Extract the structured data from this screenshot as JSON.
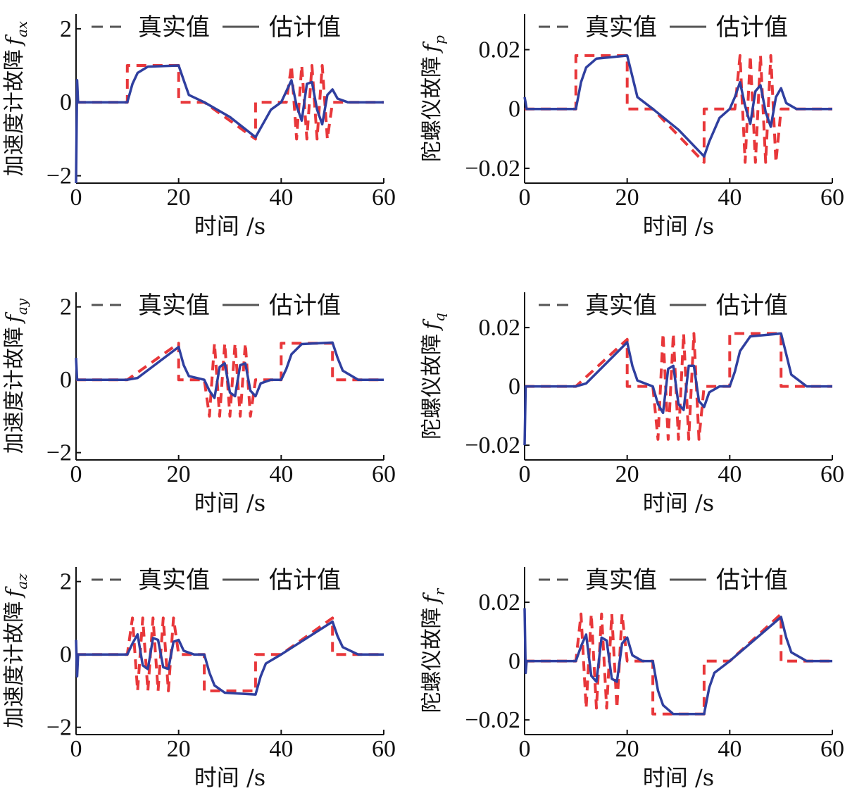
{
  "colors": {
    "true_value": "#e8373a",
    "estimate": "#2f3f9f",
    "legend_line": "#555555"
  },
  "legend": {
    "true_label": "真实值",
    "est_label": "估计值"
  },
  "chart_data": [
    {
      "type": "line",
      "ylabel": "加速度计故障",
      "ysym_main": "f",
      "ysym_sub": "ax",
      "xlabel": "时间 /s",
      "xlim": [
        0,
        60
      ],
      "ylim": [
        -2.2,
        2.4
      ],
      "xticks": [
        "0",
        "20",
        "40",
        "60"
      ],
      "xtick_values": [
        0,
        20,
        40,
        60
      ],
      "yticks": [
        "-2",
        "0",
        "2"
      ],
      "ytick_values": [
        -2,
        0,
        2
      ],
      "grid": false,
      "legend_position": "top",
      "series": [
        {
          "role": "true",
          "x": [
            0,
            10,
            10,
            20,
            20,
            25,
            35,
            35,
            40,
            41,
            42,
            43,
            44,
            45,
            46,
            47,
            48,
            49,
            50,
            60
          ],
          "y": [
            0,
            0,
            1,
            1,
            0,
            0,
            -1,
            0,
            0,
            0,
            1,
            -1,
            1,
            -1,
            1,
            -1,
            1,
            -1,
            0,
            0
          ]
        },
        {
          "role": "estimate",
          "x": [
            0,
            0.2,
            0.4,
            10,
            11,
            12,
            14,
            20,
            21,
            22,
            25,
            30,
            35,
            36,
            38,
            40,
            41,
            42,
            43,
            44,
            45,
            46,
            47,
            48,
            49,
            50,
            51,
            53,
            60
          ],
          "y": [
            -2.2,
            0.6,
            0,
            0,
            0.5,
            0.8,
            0.97,
            1,
            0.6,
            0.2,
            0,
            -0.4,
            -0.95,
            -0.7,
            -0.2,
            0,
            0.3,
            0.6,
            -0.1,
            -0.5,
            0.5,
            0.55,
            -0.2,
            -0.6,
            0.2,
            0.35,
            0.1,
            0,
            0
          ]
        }
      ]
    },
    {
      "type": "line",
      "ylabel": "陀螺仪故障",
      "ysym_main": "f",
      "ysym_sub": "p",
      "xlabel": "时间 /s",
      "xlim": [
        0,
        60
      ],
      "ylim": [
        -0.025,
        0.032
      ],
      "xticks": [
        "0",
        "20",
        "40",
        "60"
      ],
      "xtick_values": [
        0,
        20,
        40,
        60
      ],
      "yticks": [
        "0.02",
        "0",
        "-0.02"
      ],
      "ytick_values": [
        0.02,
        0,
        -0.02
      ],
      "grid": false,
      "legend_position": "top",
      "series": [
        {
          "role": "true",
          "x": [
            0,
            10,
            10,
            20,
            20,
            25,
            35,
            35,
            40,
            41,
            42,
            43,
            44,
            45,
            46,
            47,
            48,
            49,
            50,
            60
          ],
          "y": [
            0,
            0,
            0.018,
            0.018,
            0,
            0,
            -0.018,
            0,
            0,
            0,
            0.018,
            -0.018,
            0.018,
            -0.018,
            0.018,
            -0.018,
            0.018,
            -0.018,
            0,
            0
          ]
        },
        {
          "role": "estimate",
          "x": [
            0,
            0.2,
            0.4,
            10,
            11,
            12,
            14,
            20,
            21,
            22,
            25,
            30,
            35,
            36,
            38,
            40,
            41,
            42,
            43,
            44,
            45,
            46,
            47,
            48,
            49,
            50,
            51,
            53,
            60
          ],
          "y": [
            0.004,
            0.002,
            0,
            0,
            0.009,
            0.014,
            0.017,
            0.018,
            0.011,
            0.004,
            0,
            -0.007,
            -0.016,
            -0.011,
            -0.003,
            0,
            0.004,
            0.009,
            0.001,
            -0.005,
            0.006,
            0.008,
            -0.001,
            -0.006,
            0.004,
            0.007,
            0.002,
            0,
            0
          ]
        }
      ]
    },
    {
      "type": "line",
      "ylabel": "加速度计故障",
      "ysym_main": "f",
      "ysym_sub": "ay",
      "xlabel": "时间 /s",
      "xlim": [
        0,
        60
      ],
      "ylim": [
        -2.2,
        2.4
      ],
      "xticks": [
        "0",
        "20",
        "40",
        "60"
      ],
      "xtick_values": [
        0,
        20,
        40,
        60
      ],
      "yticks": [
        "-2",
        "0",
        "2"
      ],
      "ytick_values": [
        -2,
        0,
        2
      ],
      "grid": false,
      "legend_position": "top",
      "series": [
        {
          "role": "true",
          "x": [
            0,
            10,
            20,
            20,
            25,
            26,
            27,
            28,
            29,
            30,
            31,
            32,
            33,
            34,
            35,
            40,
            40,
            50,
            50,
            60
          ],
          "y": [
            0,
            0,
            1,
            0,
            0,
            -1,
            1,
            -1,
            1,
            -1,
            1,
            -1,
            1,
            -1,
            0,
            0,
            1,
            1,
            0,
            0
          ]
        },
        {
          "role": "estimate",
          "x": [
            0,
            0.2,
            0.4,
            10,
            12,
            20,
            21,
            22,
            25,
            26,
            27,
            28,
            29,
            30,
            31,
            32,
            33,
            34,
            35,
            36,
            38,
            40,
            41,
            42,
            44,
            50,
            51,
            52,
            55,
            60
          ],
          "y": [
            0.6,
            0,
            0,
            0,
            0.05,
            0.9,
            0.4,
            0.1,
            0,
            -0.3,
            -0.5,
            0.35,
            0.45,
            -0.35,
            -0.45,
            0.4,
            0.45,
            -0.3,
            -0.45,
            -0.1,
            0,
            0,
            0.3,
            0.7,
            0.98,
            1.02,
            0.6,
            0.25,
            0,
            0
          ]
        }
      ]
    },
    {
      "type": "line",
      "ylabel": "陀螺仪故障",
      "ysym_main": "f",
      "ysym_sub": "q",
      "xlabel": "时间 /s",
      "xlim": [
        0,
        60
      ],
      "ylim": [
        -0.025,
        0.032
      ],
      "xticks": [
        "0",
        "20",
        "40",
        "60"
      ],
      "xtick_values": [
        0,
        20,
        40,
        60
      ],
      "yticks": [
        "0.02",
        "0",
        "-0.02"
      ],
      "ytick_values": [
        0.02,
        0,
        -0.02
      ],
      "grid": false,
      "legend_position": "top",
      "series": [
        {
          "role": "true",
          "x": [
            0,
            10,
            20,
            20,
            25,
            26,
            27,
            28,
            29,
            30,
            31,
            32,
            33,
            34,
            35,
            40,
            40,
            50,
            50,
            60
          ],
          "y": [
            0,
            0,
            0.016,
            0,
            0,
            -0.018,
            0.018,
            -0.018,
            0.018,
            -0.018,
            0.018,
            -0.018,
            0.018,
            -0.018,
            0,
            0,
            0.018,
            0.018,
            0,
            0
          ]
        },
        {
          "role": "estimate",
          "x": [
            0,
            0.2,
            0.4,
            10,
            12,
            20,
            21,
            22,
            25,
            26,
            27,
            28,
            29,
            30,
            31,
            32,
            33,
            34,
            35,
            36,
            38,
            40,
            41,
            42,
            44,
            50,
            51,
            52,
            55,
            60
          ],
          "y": [
            -0.02,
            0,
            0,
            0,
            0.001,
            0.015,
            0.007,
            0.002,
            0,
            -0.006,
            -0.009,
            0.006,
            0.007,
            -0.006,
            -0.008,
            0.007,
            0.007,
            -0.005,
            -0.007,
            -0.002,
            0,
            0,
            0.005,
            0.012,
            0.017,
            0.018,
            0.011,
            0.004,
            0,
            0
          ]
        }
      ]
    },
    {
      "type": "line",
      "ylabel": "加速度计故障",
      "ysym_main": "f",
      "ysym_sub": "az",
      "xlabel": "时间 /s",
      "xlim": [
        0,
        60
      ],
      "ylim": [
        -2.2,
        2.4
      ],
      "xticks": [
        "0",
        "20",
        "40",
        "60"
      ],
      "xtick_values": [
        0,
        20,
        40,
        60
      ],
      "yticks": [
        "-2",
        "0",
        "2"
      ],
      "ytick_values": [
        -2,
        0,
        2
      ],
      "grid": false,
      "legend_position": "top",
      "series": [
        {
          "role": "true",
          "x": [
            0,
            10,
            11,
            12,
            13,
            14,
            15,
            16,
            17,
            18,
            19,
            20,
            25,
            25,
            35,
            35,
            40,
            50,
            50,
            60
          ],
          "y": [
            0,
            0,
            1,
            -1,
            1,
            -1,
            1,
            -1,
            1,
            -1,
            1,
            0,
            0,
            -1,
            -1,
            0,
            0,
            1,
            0,
            0
          ]
        },
        {
          "role": "estimate",
          "x": [
            0,
            0.2,
            0.4,
            10,
            11,
            12,
            13,
            14,
            15,
            16,
            17,
            18,
            19,
            20,
            21,
            23,
            25,
            26,
            27,
            29,
            35,
            36,
            37,
            40,
            50,
            51,
            52,
            55,
            60
          ],
          "y": [
            0.4,
            -0.6,
            0,
            0,
            0.3,
            0.55,
            -0.3,
            -0.4,
            0.45,
            0.4,
            -0.35,
            -0.4,
            0.35,
            0.4,
            0.1,
            0,
            0,
            -0.5,
            -0.85,
            -1.05,
            -1.1,
            -0.6,
            -0.25,
            0,
            0.9,
            0.5,
            0.2,
            0,
            0
          ]
        }
      ]
    },
    {
      "type": "line",
      "ylabel": "陀螺仪故障",
      "ysym_main": "f",
      "ysym_sub": "r",
      "xlabel": "时间 /s",
      "xlim": [
        0,
        60
      ],
      "ylim": [
        -0.025,
        0.032
      ],
      "xticks": [
        "0",
        "20",
        "40",
        "60"
      ],
      "xtick_values": [
        0,
        20,
        40,
        60
      ],
      "yticks": [
        "0.02",
        "0",
        "-0.02"
      ],
      "ytick_values": [
        0.02,
        0,
        -0.02
      ],
      "grid": false,
      "legend_position": "top",
      "series": [
        {
          "role": "true",
          "x": [
            0,
            10,
            11,
            12,
            13,
            14,
            15,
            16,
            17,
            18,
            19,
            20,
            25,
            25,
            35,
            35,
            40,
            50,
            50,
            60
          ],
          "y": [
            0,
            0,
            0.016,
            -0.016,
            0.016,
            -0.016,
            0.016,
            -0.016,
            0.016,
            -0.016,
            0.016,
            0,
            0,
            -0.018,
            -0.018,
            0,
            0,
            0.016,
            0,
            0
          ]
        },
        {
          "role": "estimate",
          "x": [
            0,
            0.2,
            0.4,
            10,
            11,
            12,
            13,
            14,
            15,
            16,
            17,
            18,
            19,
            20,
            21,
            23,
            25,
            26,
            27,
            29,
            35,
            36,
            37,
            40,
            50,
            51,
            52,
            55,
            60
          ],
          "y": [
            0.018,
            -0.004,
            0,
            0,
            0.005,
            0.009,
            -0.005,
            -0.007,
            0.008,
            0.007,
            -0.006,
            -0.007,
            0.006,
            0.008,
            0.002,
            0,
            0,
            -0.01,
            -0.015,
            -0.018,
            -0.018,
            -0.009,
            -0.004,
            0,
            0.015,
            0.008,
            0.003,
            0,
            0
          ]
        }
      ]
    }
  ]
}
